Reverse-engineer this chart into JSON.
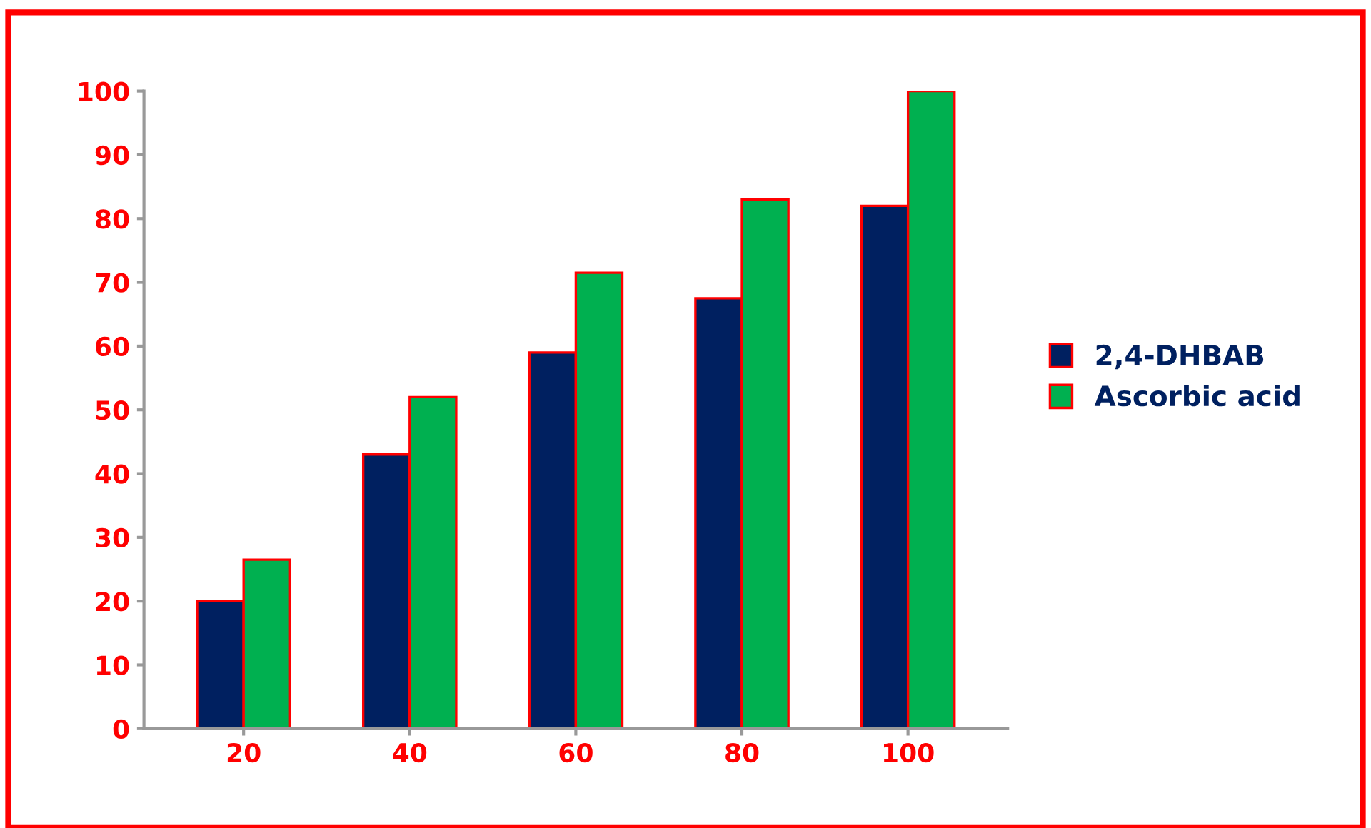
{
  "chart_data": {
    "type": "bar",
    "categories": [
      "20",
      "40",
      "60",
      "80",
      "100"
    ],
    "series": [
      {
        "name": "2,4-DHBAB",
        "color": "#002060",
        "values": [
          20,
          43,
          59,
          67.5,
          82
        ]
      },
      {
        "name": "Ascorbic acid",
        "color": "#00b050",
        "values": [
          26.5,
          52,
          71.5,
          83,
          100
        ]
      }
    ],
    "ylim": [
      0,
      100
    ],
    "yticks": [
      0,
      10,
      20,
      30,
      40,
      50,
      60,
      70,
      80,
      90,
      100
    ],
    "grid": false,
    "legend": "right"
  }
}
